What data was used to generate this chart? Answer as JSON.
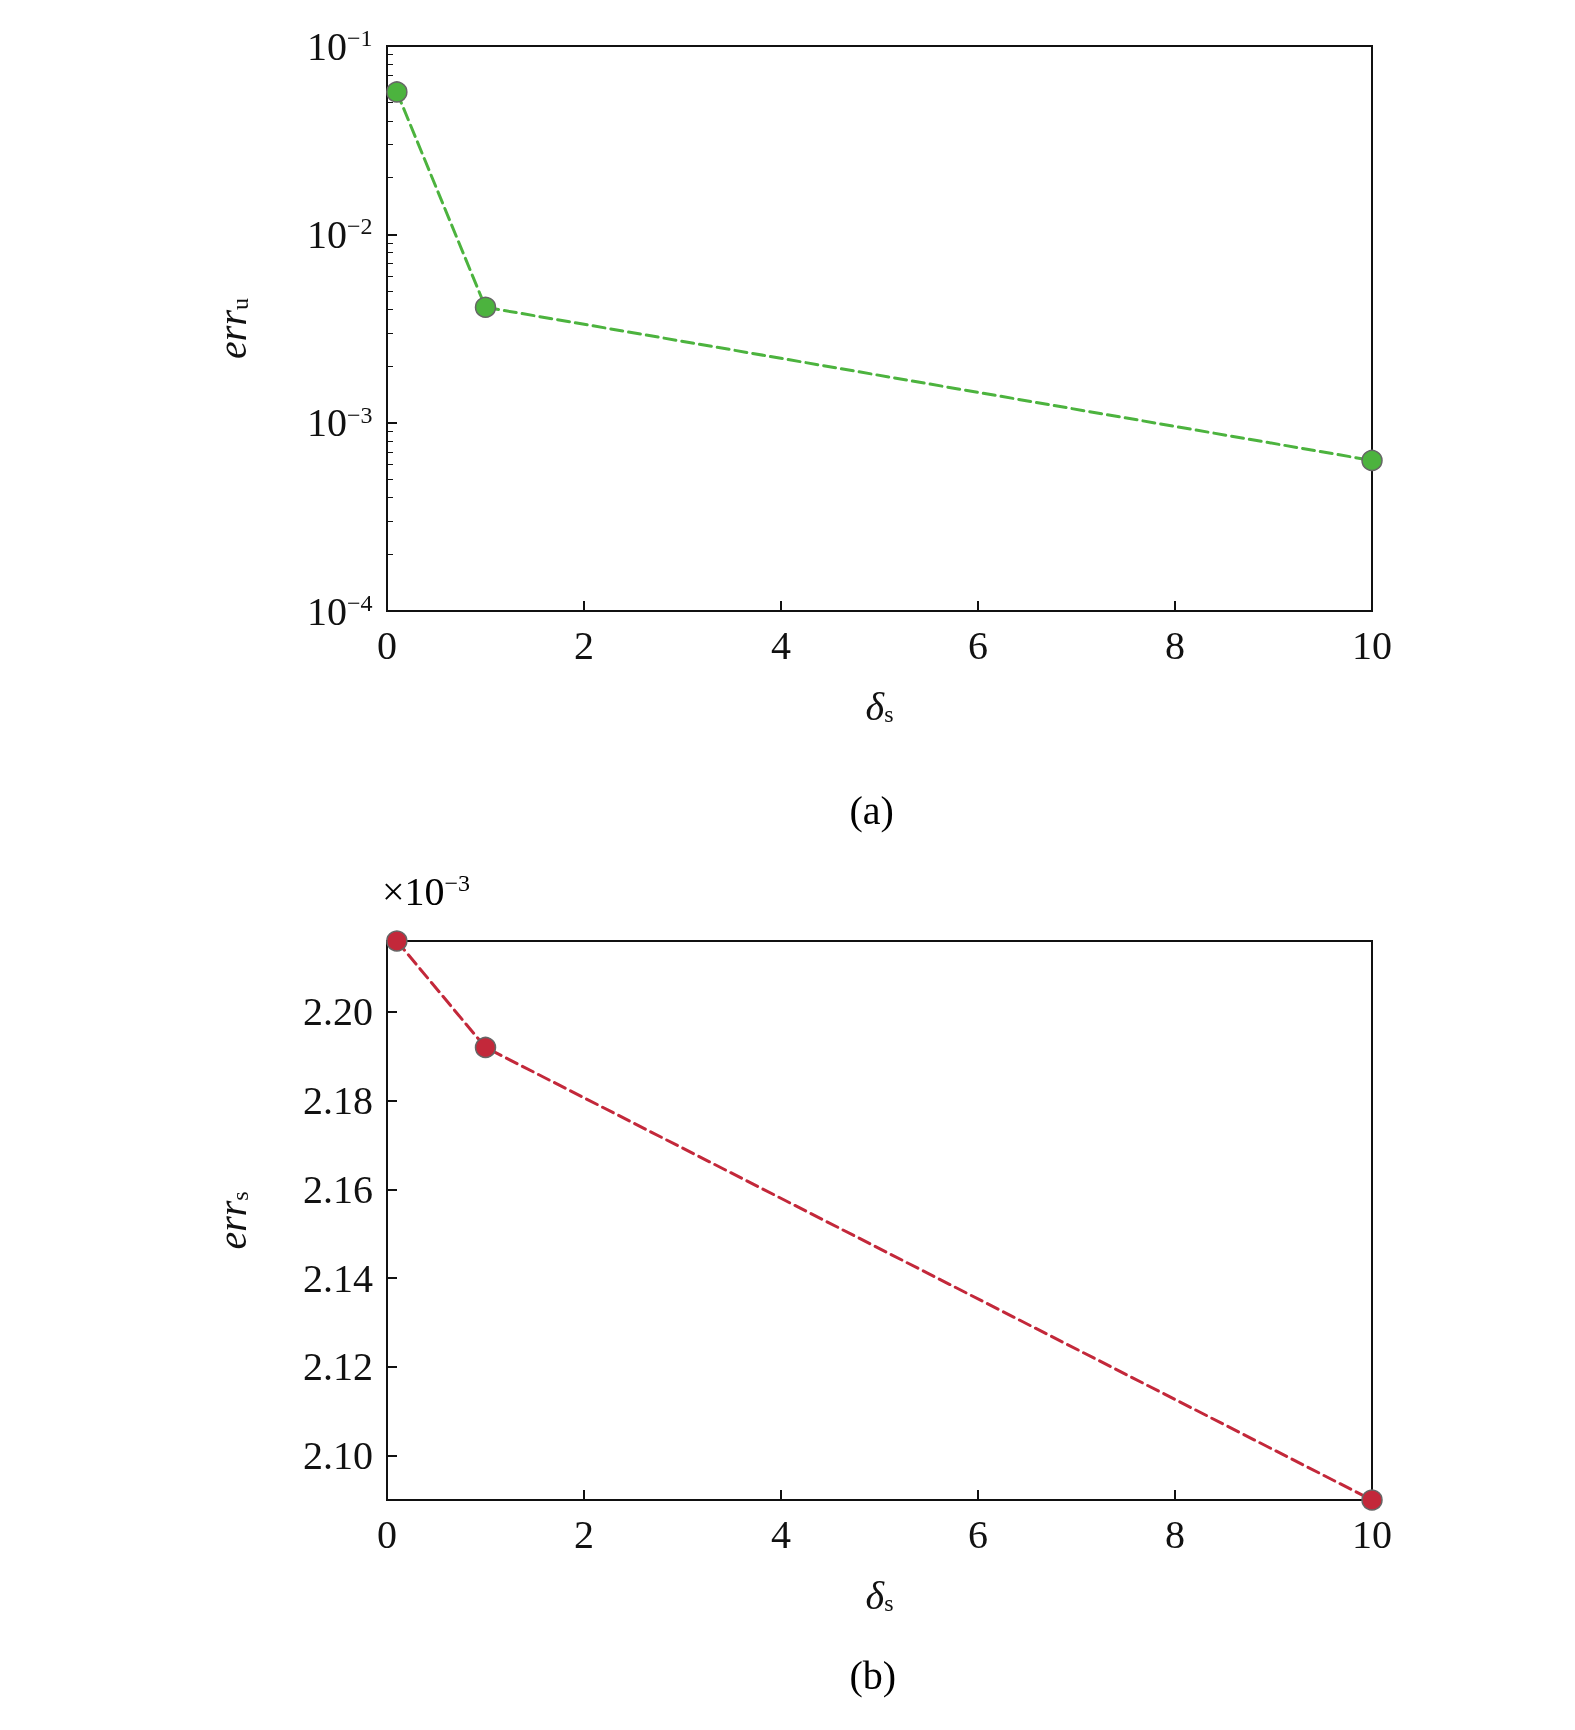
{
  "chart_data": [
    {
      "type": "line",
      "xlabel": "δ$_{s}$",
      "ylabel": "err$_{u}$",
      "x": [
        0.1,
        1,
        10
      ],
      "series": [
        {
          "color": "#4cb33e",
          "values": [
            0.057,
            0.0041,
            0.00063
          ]
        }
      ],
      "log": "y",
      "xlim": [
        0,
        10
      ],
      "xticks": [
        0,
        2,
        4,
        6,
        8,
        10
      ],
      "ylim": [
        0.0001,
        0.1
      ],
      "yticks": [
        {
          "value": 0.0001,
          "label": "10$^{−4}$"
        },
        {
          "value": 0.001,
          "label": "10$^{−3}$"
        },
        {
          "value": 0.01,
          "label": "10$^{−2}$"
        },
        {
          "value": 0.1,
          "label": "10$^{−1}$"
        }
      ],
      "marker": "circle",
      "line_style": "dashed",
      "grid": false,
      "annotations": [
        "(a)"
      ]
    },
    {
      "type": "line",
      "xlabel": "δ$_{s}$",
      "ylabel": "err$_{s}$",
      "x": [
        0.1,
        1,
        10
      ],
      "series": [
        {
          "color": "#c3283a",
          "values": [
            2.216,
            2.192,
            2.09
          ]
        }
      ],
      "xlim": [
        0,
        10
      ],
      "xticks": [
        0,
        2,
        4,
        6,
        8,
        10
      ],
      "ylim": [
        2.09,
        2.216
      ],
      "yticks": [
        {
          "value": 2.1,
          "label": "2.10"
        },
        {
          "value": 2.12,
          "label": "2.12"
        },
        {
          "value": 2.14,
          "label": "2.14"
        },
        {
          "value": 2.16,
          "label": "2.16"
        },
        {
          "value": 2.18,
          "label": "2.18"
        },
        {
          "value": 2.2,
          "label": "2.20"
        }
      ],
      "marker": "circle",
      "line_style": "dashed",
      "grid": false,
      "annotations": [
        "(b)",
        "×10$^{−3}$"
      ]
    }
  ]
}
